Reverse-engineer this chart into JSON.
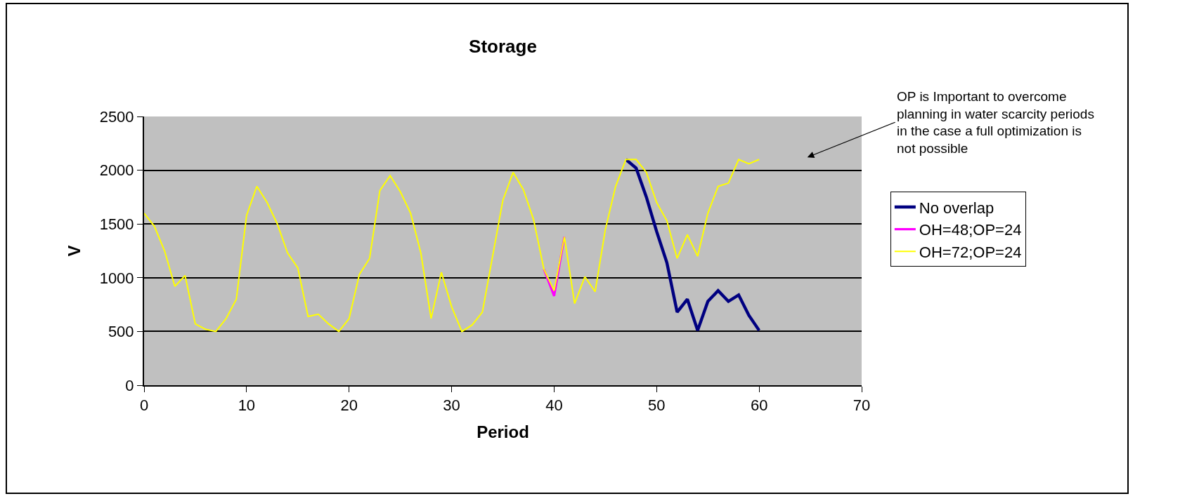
{
  "chart_data": {
    "type": "line",
    "title": "Storage",
    "xlabel": "Period",
    "ylabel": "V",
    "x": [
      0,
      1,
      2,
      3,
      4,
      5,
      6,
      7,
      8,
      9,
      10,
      11,
      12,
      13,
      14,
      15,
      16,
      17,
      18,
      19,
      20,
      21,
      22,
      23,
      24,
      25,
      26,
      27,
      28,
      29,
      30,
      31,
      32,
      33,
      34,
      35,
      36,
      37,
      38,
      39,
      40,
      41,
      42,
      43,
      44,
      45,
      46,
      47,
      48,
      49,
      50,
      51,
      52,
      53,
      54,
      55,
      56,
      57,
      58,
      59,
      60
    ],
    "series": [
      {
        "name": "No overlap",
        "color": "#000080",
        "values": [
          null,
          null,
          null,
          null,
          null,
          null,
          null,
          null,
          null,
          null,
          null,
          null,
          null,
          null,
          null,
          null,
          null,
          null,
          null,
          null,
          null,
          null,
          null,
          null,
          null,
          null,
          null,
          null,
          null,
          null,
          null,
          null,
          null,
          null,
          null,
          null,
          null,
          null,
          null,
          null,
          null,
          null,
          null,
          null,
          null,
          null,
          null,
          2100,
          2020,
          1750,
          1430,
          1140,
          680,
          800,
          510,
          780,
          880,
          780,
          840,
          650,
          510
        ]
      },
      {
        "name": "OH=48;OP=24",
        "color": "#ff00ff",
        "values": [
          null,
          null,
          null,
          null,
          null,
          null,
          null,
          null,
          null,
          null,
          null,
          null,
          null,
          null,
          null,
          null,
          null,
          null,
          null,
          null,
          null,
          null,
          null,
          null,
          null,
          null,
          null,
          null,
          null,
          null,
          null,
          null,
          null,
          null,
          null,
          null,
          null,
          null,
          null,
          1080,
          830,
          1380,
          null,
          null,
          null,
          null,
          null,
          null,
          null,
          null,
          null,
          null,
          null,
          null,
          null,
          null,
          null,
          null,
          null,
          null,
          null
        ]
      },
      {
        "name": "OH=72;OP=24",
        "color": "#ffff00",
        "values": [
          1600,
          1480,
          1250,
          920,
          1020,
          570,
          520,
          500,
          620,
          800,
          1580,
          1850,
          1700,
          1500,
          1230,
          1090,
          640,
          660,
          570,
          500,
          620,
          1030,
          1180,
          1810,
          1950,
          1800,
          1600,
          1230,
          620,
          1050,
          730,
          500,
          560,
          680,
          1200,
          1720,
          1980,
          1820,
          1540,
          1080,
          880,
          1380,
          760,
          1010,
          870,
          1450,
          1850,
          2100,
          2100,
          1980,
          1700,
          1530,
          1180,
          1400,
          1200,
          1600,
          1850,
          1880,
          2100,
          2060,
          2100
        ]
      }
    ],
    "xlim": [
      0,
      70
    ],
    "xticks": [
      0,
      10,
      20,
      30,
      40,
      50,
      60,
      70
    ],
    "ylim": [
      0,
      2500
    ],
    "yticks": [
      0,
      500,
      1000,
      1500,
      2000,
      2500
    ],
    "grid": "y",
    "legend": "right",
    "marker": "none",
    "line_style": "solid",
    "annotations": [
      "OP is Important to overcome\nplanning in water scarcity periods\nin the case a full optimization is\nnot possible"
    ]
  }
}
